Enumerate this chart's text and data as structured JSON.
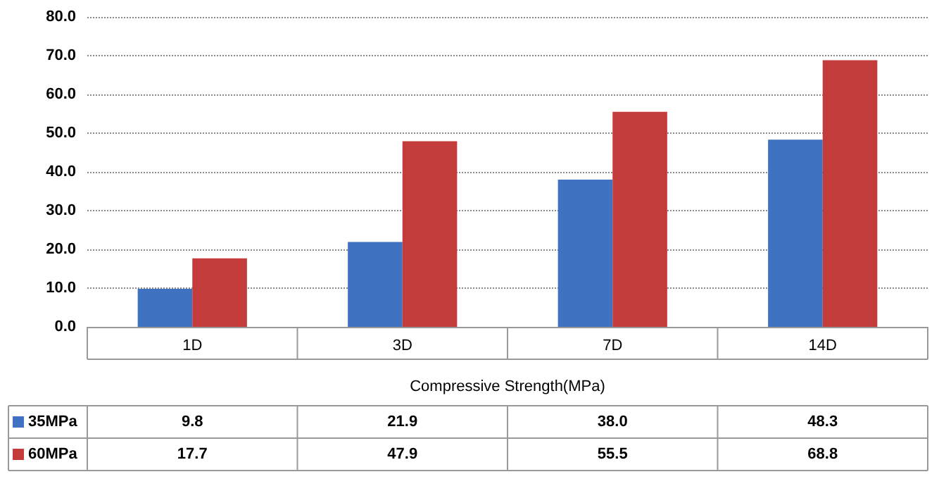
{
  "chart_data": {
    "type": "bar",
    "xlabel": "Compressive Strength(MPa)",
    "categories": [
      "1D",
      "3D",
      "7D",
      "14D"
    ],
    "series": [
      {
        "name": "35MPa",
        "color": "#3f72c0",
        "values": [
          9.8,
          21.9,
          38.0,
          48.3
        ],
        "value_labels": [
          "9.8",
          "21.9",
          "38.0",
          "48.3"
        ]
      },
      {
        "name": "60MPa",
        "color": "#c33b3b",
        "values": [
          17.7,
          47.9,
          55.5,
          68.8
        ],
        "value_labels": [
          "17.7",
          "47.9",
          "55.5",
          "68.8"
        ]
      }
    ],
    "ylim": [
      0,
      80
    ],
    "yticks": [
      {
        "value": 0,
        "label": "0.0"
      },
      {
        "value": 10,
        "label": "10.0"
      },
      {
        "value": 20,
        "label": "20.0"
      },
      {
        "value": 30,
        "label": "30.0"
      },
      {
        "value": 40,
        "label": "40.0"
      },
      {
        "value": 50,
        "label": "50.0"
      },
      {
        "value": 60,
        "label": "60.0"
      },
      {
        "value": 70,
        "label": "70.0"
      },
      {
        "value": 80,
        "label": "80.0"
      }
    ],
    "grid": "y",
    "legend": "bottom left"
  }
}
